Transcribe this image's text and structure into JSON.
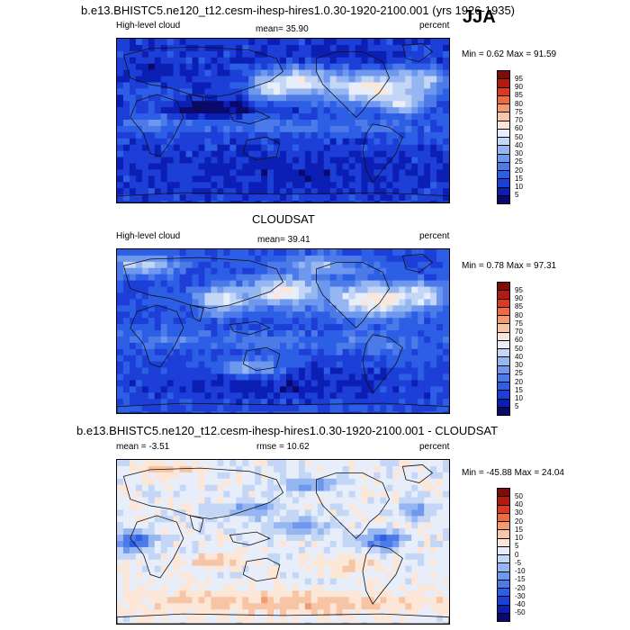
{
  "chart_data": [
    {
      "type": "heatmap",
      "title": "b.e13.BHISTC5.ne120_t12.cesm-ihesp-hires1.0.30-1920-2100.001 (yrs 1926-1935)",
      "season": "JJA",
      "left_label": "High-level cloud",
      "center_label": "mean=  35.90",
      "right_label": "percent",
      "minmax": "Min =   0.62 Max =  91.59",
      "levels": [
        "5",
        "10",
        "15",
        "20",
        "25",
        "30",
        "40",
        "50",
        "60",
        "70",
        "75",
        "80",
        "85",
        "90",
        "95"
      ],
      "colors": [
        "#0a0a6e",
        "#0c1fb4",
        "#1d3fd8",
        "#2d5fe6",
        "#4c7ae8",
        "#6e98ee",
        "#96b6f2",
        "#c3d6f6",
        "#e7eefa",
        "#fbe6d8",
        "#f7c4a4",
        "#f39a72",
        "#ec6a44",
        "#db3a22",
        "#b41a12",
        "#7e0c08"
      ],
      "fields": {
        "base": 2.0,
        "features": [
          [
            0.78,
            0.3,
            0.16,
            0.1,
            9
          ],
          [
            0.55,
            0.25,
            0.1,
            0.08,
            8
          ],
          [
            0.46,
            0.29,
            0.06,
            0.07,
            8
          ],
          [
            0.92,
            0.24,
            0.06,
            0.06,
            7
          ],
          [
            0.87,
            0.39,
            0.05,
            0.05,
            8
          ],
          [
            0.12,
            0.2,
            0.1,
            0.07,
            1
          ],
          [
            0.28,
            0.43,
            0.1,
            0.06,
            -2
          ],
          [
            0.15,
            0.5,
            0.18,
            0.05,
            4
          ],
          [
            0.45,
            0.52,
            0.15,
            0.05,
            4
          ],
          [
            0.75,
            0.52,
            0.2,
            0.05,
            4
          ],
          [
            0.9,
            0.55,
            0.12,
            0.05,
            3
          ],
          [
            0.5,
            0.8,
            0.4,
            0.1,
            1
          ],
          [
            0.1,
            0.33,
            0.08,
            0.06,
            3
          ],
          [
            0.65,
            0.08,
            0.2,
            0.06,
            1
          ]
        ]
      }
    },
    {
      "type": "heatmap",
      "title": "CLOUDSAT",
      "left_label": "High-level cloud",
      "center_label": "mean=  39.41",
      "right_label": "percent",
      "minmax": "Min =   0.78 Max =  97.31",
      "levels": [
        "5",
        "10",
        "15",
        "20",
        "25",
        "30",
        "40",
        "50",
        "60",
        "70",
        "75",
        "80",
        "85",
        "90",
        "95"
      ],
      "colors": [
        "#0a0a6e",
        "#0c1fb4",
        "#1d3fd8",
        "#2d5fe6",
        "#4c7ae8",
        "#6e98ee",
        "#96b6f2",
        "#c3d6f6",
        "#e7eefa",
        "#fbe6d8",
        "#f7c4a4",
        "#f39a72",
        "#ec6a44",
        "#db3a22",
        "#b41a12",
        "#7e0c08"
      ],
      "fields": {
        "base": 2.5,
        "features": [
          [
            0.78,
            0.3,
            0.15,
            0.1,
            9
          ],
          [
            0.5,
            0.25,
            0.1,
            0.08,
            9
          ],
          [
            0.32,
            0.3,
            0.08,
            0.08,
            8
          ],
          [
            0.92,
            0.27,
            0.06,
            0.06,
            8
          ],
          [
            0.82,
            0.55,
            0.07,
            0.05,
            6
          ],
          [
            0.1,
            0.2,
            0.1,
            0.07,
            2
          ],
          [
            0.15,
            0.53,
            0.18,
            0.05,
            4
          ],
          [
            0.45,
            0.55,
            0.15,
            0.05,
            4
          ],
          [
            0.75,
            0.55,
            0.2,
            0.05,
            4
          ],
          [
            0.9,
            0.52,
            0.12,
            0.05,
            3
          ],
          [
            0.5,
            0.8,
            0.4,
            0.1,
            1
          ],
          [
            0.08,
            0.1,
            0.1,
            0.06,
            7
          ],
          [
            0.62,
            0.1,
            0.12,
            0.06,
            6
          ],
          [
            0.4,
            0.7,
            0.1,
            0.05,
            6
          ]
        ]
      }
    },
    {
      "type": "heatmap",
      "title": "b.e13.BHISTC5.ne120_t12.cesm-ihesp-hires1.0.30-1920-2100.001 - CLOUDSAT",
      "left_label": "mean = -3.51",
      "center_label": "rmse =  10.62",
      "right_label": "percent",
      "minmax": "Min = -45.88 Max =  24.04",
      "levels": [
        "-50",
        "-40",
        "-30",
        "-20",
        "-15",
        "-10",
        "-5",
        "0",
        "5",
        "10",
        "15",
        "20",
        "30",
        "40",
        "50"
      ],
      "colors": [
        "#0a0a6e",
        "#0c1fb4",
        "#1d3fd8",
        "#2d5fe6",
        "#4c7ae8",
        "#6e98ee",
        "#96b6f2",
        "#c3d6f6",
        "#e7eefa",
        "#fbe6d8",
        "#f7c4a4",
        "#f39a72",
        "#ec6a44",
        "#db3a22",
        "#b41a12",
        "#7e0c08"
      ],
      "fields": {
        "base": 8.0,
        "features": [
          [
            0.05,
            0.48,
            0.06,
            0.06,
            3
          ],
          [
            0.8,
            0.48,
            0.06,
            0.05,
            3
          ],
          [
            0.55,
            0.4,
            0.08,
            0.05,
            5
          ],
          [
            0.4,
            0.3,
            0.08,
            0.05,
            5
          ],
          [
            0.58,
            0.15,
            0.08,
            0.05,
            5
          ],
          [
            0.3,
            0.6,
            0.1,
            0.04,
            10
          ],
          [
            0.7,
            0.62,
            0.1,
            0.04,
            10
          ],
          [
            0.5,
            0.85,
            0.5,
            0.08,
            10
          ],
          [
            0.15,
            0.05,
            0.1,
            0.04,
            10
          ],
          [
            0.9,
            0.3,
            0.05,
            0.05,
            5
          ]
        ]
      }
    }
  ]
}
